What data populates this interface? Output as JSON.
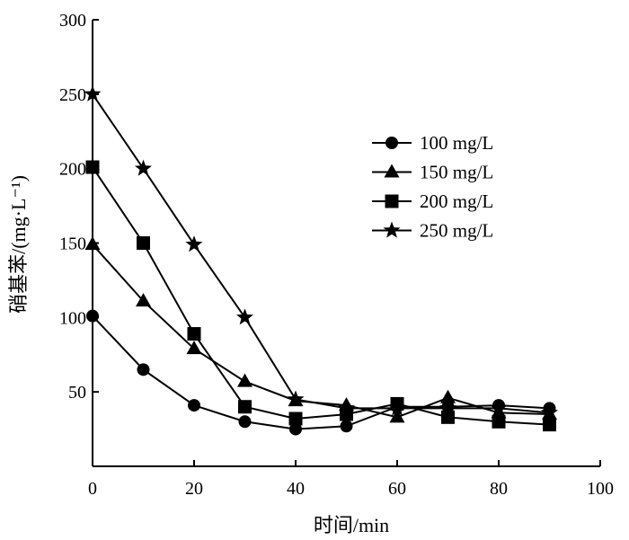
{
  "chart_data": {
    "type": "line",
    "title": "",
    "xlabel": "时间/min",
    "ylabel": "硝基苯/(mg·L⁻¹)",
    "xlim": [
      0,
      100
    ],
    "ylim": [
      0,
      300
    ],
    "x_ticks": [
      "0",
      "20",
      "40",
      "60",
      "80",
      "100"
    ],
    "y_ticks": [
      "50",
      "100",
      "150",
      "200",
      "250",
      "300"
    ],
    "grid": false,
    "legend_position": "right",
    "x": [
      0,
      10,
      20,
      30,
      40,
      50,
      60,
      70,
      80,
      90
    ],
    "series": [
      {
        "name": "100 mg/L",
        "marker": "circle",
        "color": "#000000",
        "values": [
          101,
          65,
          41,
          30,
          25,
          27,
          40,
          40,
          41,
          39
        ]
      },
      {
        "name": "150 mg/L",
        "marker": "triangle",
        "color": "#000000",
        "values": [
          149,
          111,
          79,
          57,
          44,
          41,
          33,
          46,
          36,
          35
        ]
      },
      {
        "name": "200 mg/L",
        "marker": "square",
        "color": "#000000",
        "values": [
          201,
          150,
          89,
          40,
          32,
          35,
          42,
          33,
          30,
          28
        ]
      },
      {
        "name": "250 mg/L",
        "marker": "star",
        "color": "#000000",
        "values": [
          250,
          200,
          149,
          100,
          45,
          39,
          39,
          39,
          39,
          36
        ]
      }
    ]
  }
}
